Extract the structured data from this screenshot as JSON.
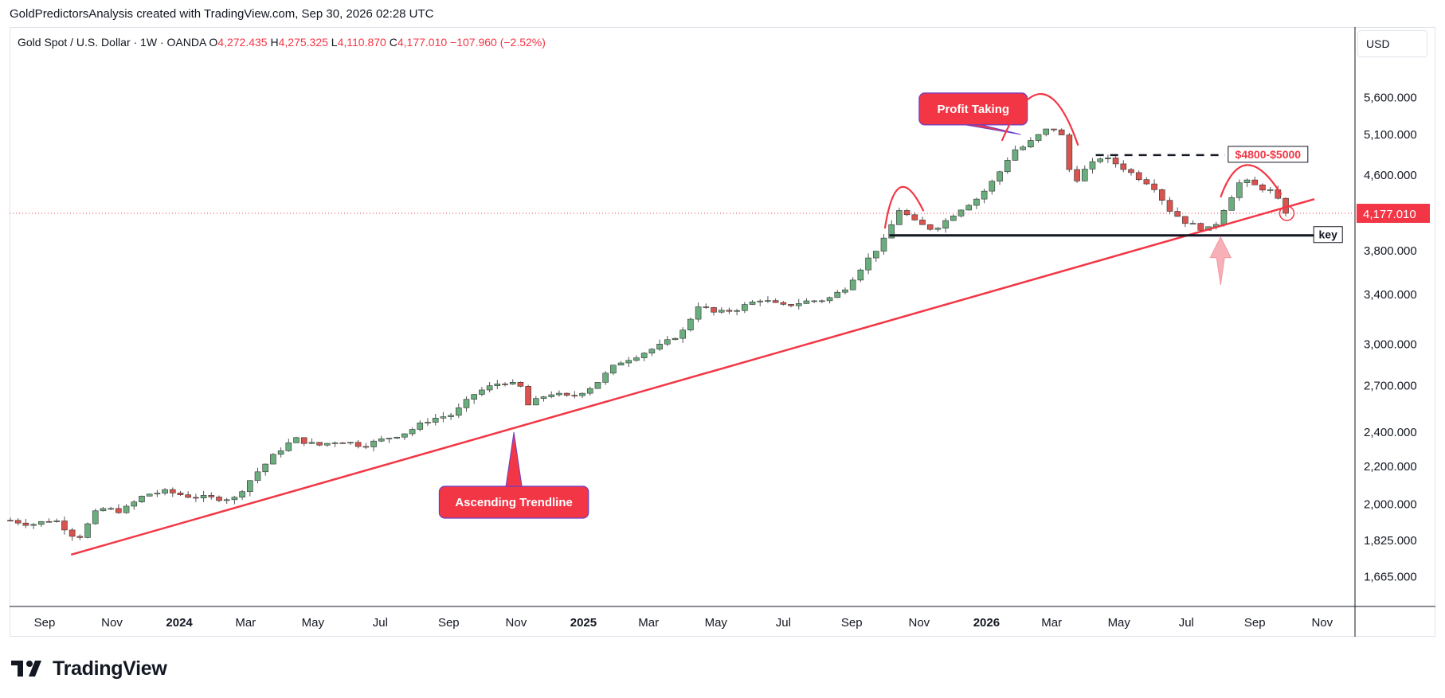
{
  "header": {
    "credit": "GoldPredictorsAnalysis created with TradingView.com, Sep 30, 2026 02:28 UTC"
  },
  "legend": {
    "symbol": "Gold Spot / U.S. Dollar · 1W · OANDA",
    "o_label": "O",
    "o_value": "4,272.435",
    "h_label": "H",
    "h_value": "4,275.325",
    "l_label": "L",
    "l_value": "4,110.870",
    "c_label": "C",
    "c_value": "4,177.010",
    "change": "−107.960 (−2.52%)"
  },
  "currency_button": "USD",
  "brand": {
    "name": "TradingView"
  },
  "colors": {
    "up": "#22ab94",
    "up_body": "#6aae7e",
    "down": "#f23645",
    "down_body": "#d9544f",
    "trend": "#f23645",
    "callout": "#f23645",
    "callout_border": "#6a3fc8",
    "key_line": "#131722"
  },
  "chart_data": {
    "type": "candlestick",
    "timeframe": "1W",
    "y_scale": "log",
    "ylim": [
      1550,
      6200
    ],
    "y_ticks": [
      1665,
      1825,
      2000,
      2200,
      2400,
      2700,
      3000,
      3400,
      3800,
      4600,
      5100,
      5600
    ],
    "y_tick_labels": [
      "1,665.000",
      "1,825.000",
      "2,000.000",
      "2,200.000",
      "2,400.000",
      "2,700.000",
      "3,000.000",
      "3,400.000",
      "3,800.000",
      "4,600.000",
      "5,100.000",
      "5,600.000"
    ],
    "x_ticks": [
      {
        "label": "Sep",
        "date": "2023-09-01",
        "bold": false
      },
      {
        "label": "Nov",
        "date": "2023-11-01",
        "bold": false
      },
      {
        "label": "2024",
        "date": "2024-01-01",
        "bold": true
      },
      {
        "label": "Mar",
        "date": "2024-03-01",
        "bold": false
      },
      {
        "label": "May",
        "date": "2024-05-01",
        "bold": false
      },
      {
        "label": "Jul",
        "date": "2024-07-01",
        "bold": false
      },
      {
        "label": "Sep",
        "date": "2024-09-01",
        "bold": false
      },
      {
        "label": "Nov",
        "date": "2024-11-01",
        "bold": false
      },
      {
        "label": "2025",
        "date": "2025-01-01",
        "bold": true
      },
      {
        "label": "Mar",
        "date": "2025-03-01",
        "bold": false
      },
      {
        "label": "May",
        "date": "2025-05-01",
        "bold": false
      },
      {
        "label": "Jul",
        "date": "2025-07-01",
        "bold": false
      },
      {
        "label": "Sep",
        "date": "2025-09-01",
        "bold": false
      },
      {
        "label": "Nov",
        "date": "2025-11-01",
        "bold": false
      },
      {
        "label": "2026",
        "date": "2026-01-01",
        "bold": true
      },
      {
        "label": "Mar",
        "date": "2026-03-01",
        "bold": false
      },
      {
        "label": "May",
        "date": "2026-05-01",
        "bold": false
      },
      {
        "label": "Jul",
        "date": "2026-07-01",
        "bold": false
      },
      {
        "label": "Sep",
        "date": "2026-09-01",
        "bold": false
      },
      {
        "label": "Nov",
        "date": "2026-11-01",
        "bold": false
      }
    ],
    "x_range": [
      "2023-08-01",
      "2026-11-30"
    ],
    "last_price": 4177.01,
    "last_price_label": "4,177.010",
    "key_points": [
      [
        "2023-08-01",
        1920
      ],
      [
        "2023-08-20",
        1900
      ],
      [
        "2023-09-10",
        1925
      ],
      [
        "2023-10-01",
        1830
      ],
      [
        "2023-10-20",
        1980
      ],
      [
        "2023-11-10",
        1965
      ],
      [
        "2023-12-01",
        2050
      ],
      [
        "2023-12-20",
        2065
      ],
      [
        "2024-01-10",
        2040
      ],
      [
        "2024-02-01",
        2030
      ],
      [
        "2024-02-20",
        2030
      ],
      [
        "2024-03-10",
        2160
      ],
      [
        "2024-03-31",
        2290
      ],
      [
        "2024-04-15",
        2360
      ],
      [
        "2024-05-05",
        2320
      ],
      [
        "2024-05-25",
        2350
      ],
      [
        "2024-06-15",
        2320
      ],
      [
        "2024-07-05",
        2360
      ],
      [
        "2024-07-25",
        2400
      ],
      [
        "2024-08-15",
        2480
      ],
      [
        "2024-09-05",
        2510
      ],
      [
        "2024-09-25",
        2650
      ],
      [
        "2024-10-20",
        2730
      ],
      [
        "2024-11-05",
        2690
      ],
      [
        "2024-11-12",
        2570
      ],
      [
        "2024-12-01",
        2650
      ],
      [
        "2024-12-20",
        2620
      ],
      [
        "2025-01-10",
        2700
      ],
      [
        "2025-02-01",
        2860
      ],
      [
        "2025-02-20",
        2920
      ],
      [
        "2025-03-15",
        3000
      ],
      [
        "2025-04-01",
        3100
      ],
      [
        "2025-04-15",
        3310
      ],
      [
        "2025-05-01",
        3240
      ],
      [
        "2025-05-20",
        3280
      ],
      [
        "2025-06-10",
        3360
      ],
      [
        "2025-06-30",
        3300
      ],
      [
        "2025-07-20",
        3340
      ],
      [
        "2025-08-10",
        3360
      ],
      [
        "2025-08-25",
        3450
      ],
      [
        "2025-09-10",
        3650
      ],
      [
        "2025-09-30",
        3900
      ],
      [
        "2025-10-15",
        4240
      ],
      [
        "2025-10-25",
        4100
      ],
      [
        "2025-11-10",
        4020
      ],
      [
        "2025-11-20",
        4050
      ],
      [
        "2025-12-05",
        4200
      ],
      [
        "2025-12-25",
        4350
      ],
      [
        "2026-01-10",
        4580
      ],
      [
        "2026-01-25",
        4900
      ],
      [
        "2026-02-05",
        4950
      ],
      [
        "2026-02-20",
        5120
      ],
      [
        "2026-03-01",
        5200
      ],
      [
        "2026-03-10",
        5080
      ],
      [
        "2026-03-20",
        4500
      ],
      [
        "2026-03-30",
        4650
      ],
      [
        "2026-04-15",
        4820
      ],
      [
        "2026-05-01",
        4720
      ],
      [
        "2026-05-15",
        4600
      ],
      [
        "2026-06-01",
        4480
      ],
      [
        "2026-06-15",
        4220
      ],
      [
        "2026-07-01",
        4080
      ],
      [
        "2026-07-15",
        4020
      ],
      [
        "2026-07-25",
        4010
      ],
      [
        "2026-08-05",
        4250
      ],
      [
        "2026-08-20",
        4550
      ],
      [
        "2026-09-01",
        4480
      ],
      [
        "2026-09-15",
        4420
      ],
      [
        "2026-09-25",
        4270
      ],
      [
        "2026-09-30",
        4177
      ]
    ],
    "annotations": [
      {
        "type": "trendline",
        "name": "Ascending Trendline",
        "from": [
          "2023-09-25",
          1760
        ],
        "to": [
          "2026-10-25",
          4330
        ]
      },
      {
        "type": "hline",
        "name": "key",
        "label": "key",
        "price": 3950,
        "from": "2025-10-05",
        "to": "2026-11-15"
      },
      {
        "type": "dashed_hline",
        "price": 4840,
        "from": "2026-04-10",
        "to": "2026-08-05",
        "label": "$4800-$5000"
      },
      {
        "type": "callout",
        "label": "Profit Taking",
        "box_at": [
          "2025-12-20",
          5440
        ],
        "tip_at": [
          "2026-02-01",
          5100
        ]
      },
      {
        "type": "callout",
        "label": "Ascending Trendline",
        "box_at": [
          "2024-10-30",
          2010
        ],
        "tip_at": [
          "2024-10-30",
          2400
        ]
      },
      {
        "type": "arc",
        "from": [
          "2025-10-01",
          4020
        ],
        "peak": [
          "2025-10-15",
          4460
        ],
        "to": [
          "2025-11-05",
          4200
        ]
      },
      {
        "type": "arc",
        "from": [
          "2026-01-15",
          5020
        ],
        "peak": [
          "2026-02-20",
          5650
        ],
        "to": [
          "2026-03-25",
          4960
        ]
      },
      {
        "type": "arc",
        "from": [
          "2026-08-01",
          4350
        ],
        "peak": [
          "2026-08-25",
          4720
        ],
        "to": [
          "2026-09-25",
          4380
        ]
      },
      {
        "type": "arrow_up",
        "at": [
          "2026-08-01",
          3950
        ]
      },
      {
        "type": "circle",
        "at": [
          "2026-09-30",
          4177
        ]
      }
    ]
  }
}
